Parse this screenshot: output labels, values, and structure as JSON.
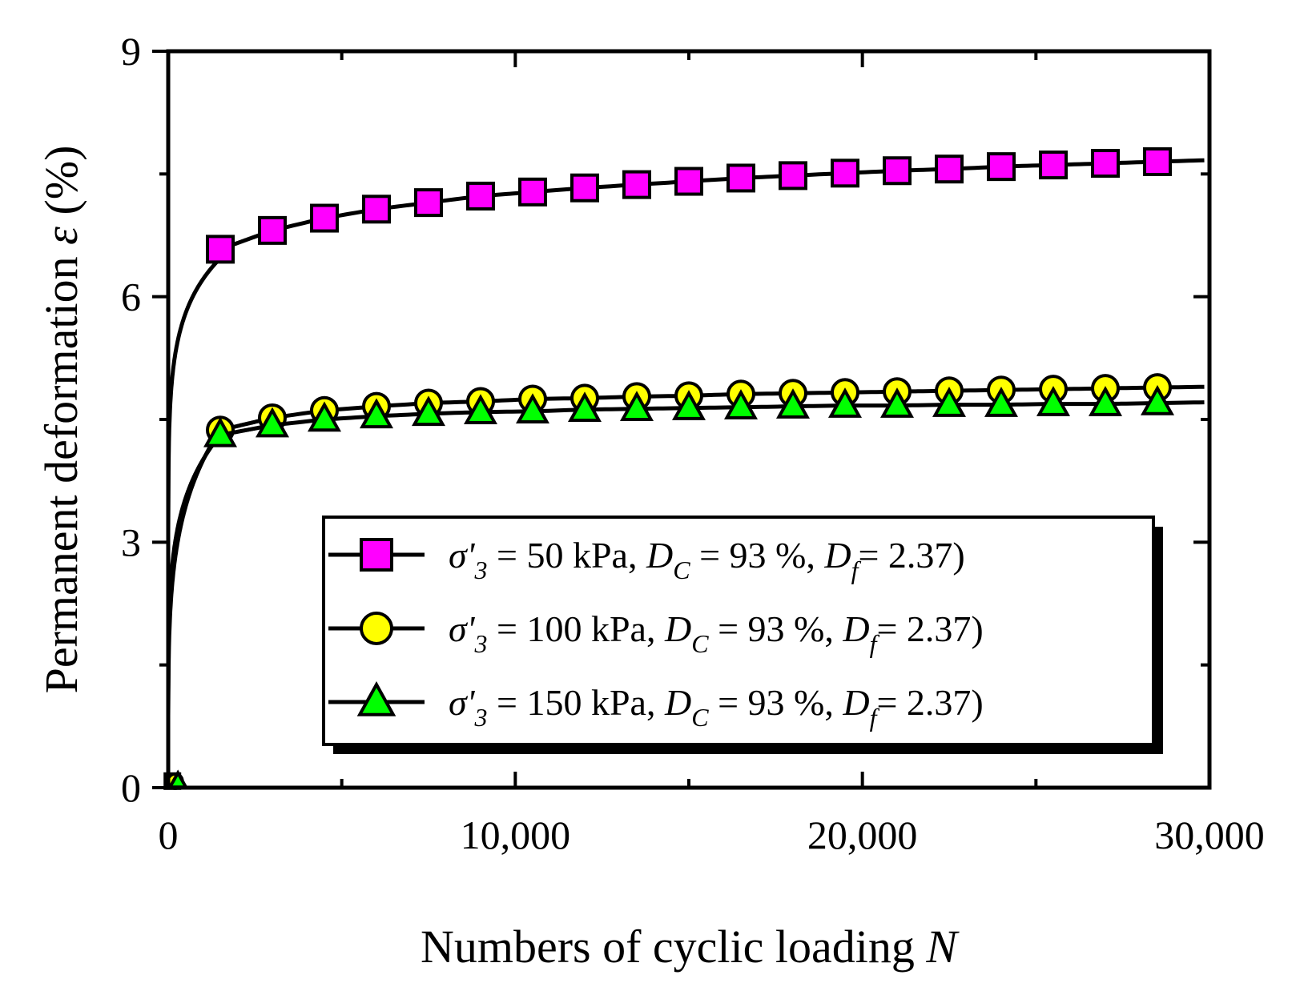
{
  "chart_data": {
    "type": "line",
    "title": "",
    "xlabel": "Numbers of cyclic loading N",
    "xlabel_parts": {
      "text": "Numbers of cyclic loading ",
      "var": "N"
    },
    "ylabel": "Permanent deformation ε (%)",
    "ylabel_parts": {
      "text": "Permanent deformation ",
      "var": "ε",
      "unit": " (%)"
    },
    "xlim": [
      0,
      30000
    ],
    "ylim": [
      0,
      9
    ],
    "x_ticks": [
      0,
      10000,
      20000,
      30000
    ],
    "x_tick_labels": [
      "0",
      "10,000",
      "20,000",
      "30,000"
    ],
    "y_ticks": [
      0,
      3,
      6,
      9
    ],
    "y_tick_labels": [
      "0",
      "3",
      "6",
      "9"
    ],
    "legend_position": "lower-right",
    "series": [
      {
        "name": "σ'3 = 50 kPa, DC = 93 %, Df = 2.37)",
        "pressure": "50",
        "marker": "square",
        "color": "#ff00ff",
        "curve": {
          "a": 6.47,
          "b": 0.012,
          "k": 0.1,
          "c": 0.95,
          "n0": 1500
        },
        "marker_x": [
          1500,
          3000,
          4500,
          6000,
          7500,
          9000,
          10500,
          12000,
          13500,
          15000,
          16500,
          18000,
          19500,
          21000,
          22500,
          24000,
          25500,
          27000,
          28500
        ],
        "values": [
          6.58,
          6.81,
          6.96,
          7.07,
          7.15,
          7.23,
          7.28,
          7.33,
          7.37,
          7.41,
          7.45,
          7.48,
          7.51,
          7.54,
          7.56,
          7.59,
          7.61,
          7.63,
          7.65
        ]
      },
      {
        "name": "σ'3 = 100 kPa, DC = 93 %, Df = 2.37)",
        "pressure": "100",
        "marker": "circle",
        "color": "#ffff00",
        "curve": {
          "a": 4.37,
          "b": 0.0015,
          "k": 0.22,
          "c": 1.0,
          "n0": 1500
        },
        "marker_x": [
          1500,
          3000,
          4500,
          6000,
          7500,
          9000,
          10500,
          12000,
          13500,
          15000,
          16500,
          18000,
          19500,
          21000,
          22500,
          24000,
          25500,
          27000,
          28500
        ],
        "values": [
          4.37,
          4.52,
          4.61,
          4.66,
          4.7,
          4.72,
          4.75,
          4.76,
          4.78,
          4.79,
          4.81,
          4.82,
          4.83,
          4.84,
          4.85,
          4.86,
          4.87,
          4.88,
          4.89
        ]
      },
      {
        "name": "σ'3 = 150 kPa, DC = 93 %, Df = 2.37)",
        "pressure": "150",
        "marker": "triangle",
        "color": "#00ff00",
        "curve": {
          "a": 4.31,
          "b": 0.0015,
          "k": 0.18,
          "c": 1.0,
          "n0": 1500
        },
        "marker_x": [
          1500,
          3000,
          4500,
          6000,
          7500,
          9000,
          10500,
          12000,
          13500,
          15000,
          16500,
          18000,
          19500,
          21000,
          22500,
          24000,
          25500,
          27000,
          28500
        ],
        "values": [
          4.31,
          4.43,
          4.5,
          4.54,
          4.57,
          4.59,
          4.6,
          4.62,
          4.63,
          4.64,
          4.65,
          4.66,
          4.67,
          4.67,
          4.68,
          4.68,
          4.69,
          4.69,
          4.7
        ]
      }
    ],
    "legend_common": {
      "sigma": "σ'",
      "sigma_sub": "3",
      "eq_text": " = ",
      "unit": " kPa,",
      "dc": "D",
      "dc_sub": "C",
      "dc_val": " = 93 %,",
      "df": "D",
      "df_sub": "f",
      "df_val": "= 2.37)"
    }
  }
}
